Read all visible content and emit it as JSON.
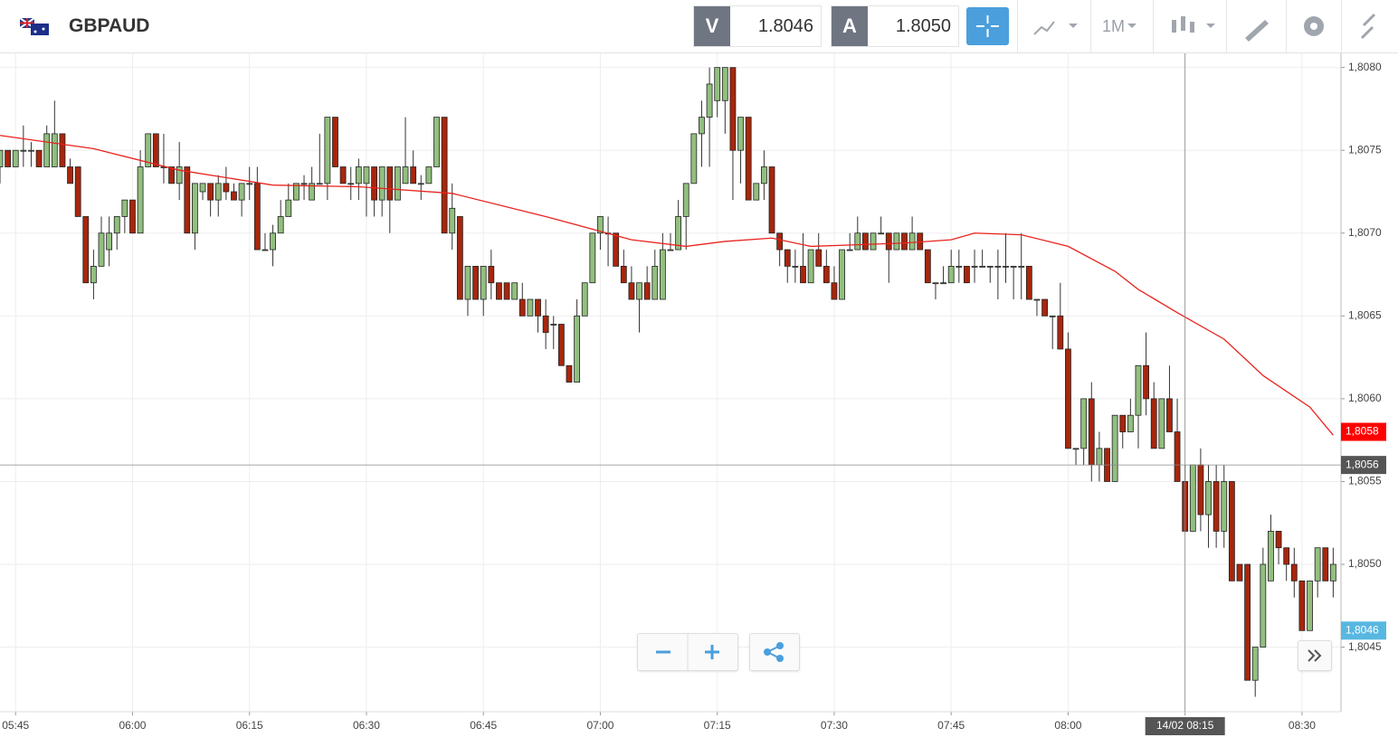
{
  "header": {
    "symbol": "GBPAUD",
    "bid_label": "V",
    "bid": "1.8046",
    "ask_label": "A",
    "ask": "1.8050",
    "timeframe": "1M"
  },
  "chart_data": {
    "type": "candlestick",
    "up_color": "#92bf7f",
    "down_color": "#a8260c",
    "xlim": [
      "05:43",
      "08:35"
    ],
    "xticks": [
      "05:45",
      "06:00",
      "06:15",
      "06:30",
      "06:45",
      "07:00",
      "07:15",
      "07:30",
      "07:45",
      "08:00",
      "08:15",
      "08:30"
    ],
    "ylim": [
      1.80411,
      1.80808
    ],
    "yticks": [
      {
        "value": 1.8045,
        "label": "1,8045"
      },
      {
        "value": 1.805,
        "label": "1,8050"
      },
      {
        "value": 1.8055,
        "label": "1,8055"
      },
      {
        "value": 1.806,
        "label": "1,8060"
      },
      {
        "value": 1.8065,
        "label": "1,8065"
      },
      {
        "value": 1.807,
        "label": "1,8070"
      },
      {
        "value": 1.8075,
        "label": "1,8075"
      },
      {
        "value": 1.808,
        "label": "1,8080"
      }
    ],
    "grid": true,
    "x": [
      "05:43",
      "05:44",
      "05:45",
      "05:46",
      "05:47",
      "05:48",
      "05:49",
      "05:50",
      "05:51",
      "05:52",
      "05:53",
      "05:54",
      "05:55",
      "05:56",
      "05:57",
      "05:58",
      "05:59",
      "06:00",
      "06:01",
      "06:02",
      "06:03",
      "06:04",
      "06:05",
      "06:06",
      "06:07",
      "06:08",
      "06:09",
      "06:10",
      "06:11",
      "06:12",
      "06:13",
      "06:14",
      "06:15",
      "06:16",
      "06:17",
      "06:18",
      "06:19",
      "06:20",
      "06:21",
      "06:22",
      "06:23",
      "06:24",
      "06:25",
      "06:26",
      "06:27",
      "06:28",
      "06:29",
      "06:30",
      "06:31",
      "06:32",
      "06:33",
      "06:34",
      "06:35",
      "06:36",
      "06:37",
      "06:38",
      "06:39",
      "06:40",
      "06:41",
      "06:42",
      "06:43",
      "06:44",
      "06:45",
      "06:46",
      "06:47",
      "06:48",
      "06:49",
      "06:50",
      "06:51",
      "06:52",
      "06:53",
      "06:54",
      "06:55",
      "06:56",
      "06:57",
      "06:58",
      "06:59",
      "07:00",
      "07:01",
      "07:02",
      "07:03",
      "07:04",
      "07:05",
      "07:06",
      "07:07",
      "07:08",
      "07:09",
      "07:10",
      "07:11",
      "07:12",
      "07:13",
      "07:14",
      "07:15",
      "07:16",
      "07:17",
      "07:18",
      "07:19",
      "07:20",
      "07:21",
      "07:22",
      "07:23",
      "07:24",
      "07:25",
      "07:26",
      "07:27",
      "07:28",
      "07:29",
      "07:30",
      "07:31",
      "07:32",
      "07:33",
      "07:34",
      "07:35",
      "07:36",
      "07:37",
      "07:38",
      "07:39",
      "07:40",
      "07:41",
      "07:42",
      "07:43",
      "07:44",
      "07:45",
      "07:46",
      "07:47",
      "07:48",
      "07:49",
      "07:50",
      "07:51",
      "07:52",
      "07:53",
      "07:54",
      "07:55",
      "07:56",
      "07:57",
      "07:58",
      "07:59",
      "08:00",
      "08:01",
      "08:02",
      "08:03",
      "08:04",
      "08:05",
      "08:06",
      "08:07",
      "08:08",
      "08:09",
      "08:10",
      "08:11",
      "08:12",
      "08:13",
      "08:14",
      "08:15",
      "08:16",
      "08:17",
      "08:18",
      "08:19",
      "08:20",
      "08:21",
      "08:22",
      "08:23",
      "08:24",
      "08:25",
      "08:26",
      "08:27",
      "08:28",
      "08:29",
      "08:30",
      "08:31",
      "08:32",
      "08:33",
      "08:34"
    ],
    "ohlc": [
      [
        1.8074,
        1.8075,
        1.8073,
        1.8075
      ],
      [
        1.8075,
        1.8075,
        1.8074,
        1.8074
      ],
      [
        1.8074,
        1.8075,
        1.8074,
        1.8075
      ],
      [
        1.8075,
        1.80765,
        1.8074,
        1.8075
      ],
      [
        1.8075,
        1.80755,
        1.8074,
        1.8075
      ],
      [
        1.8075,
        1.8075,
        1.8074,
        1.8074
      ],
      [
        1.8074,
        1.80765,
        1.8074,
        1.8076
      ],
      [
        1.8074,
        1.8078,
        1.8074,
        1.8076
      ],
      [
        1.8076,
        1.8076,
        1.8074,
        1.8074
      ],
      [
        1.8074,
        1.80745,
        1.8073,
        1.8073
      ],
      [
        1.8074,
        1.8074,
        1.8071,
        1.8071
      ],
      [
        1.8071,
        1.8071,
        1.8067,
        1.8067
      ],
      [
        1.8067,
        1.8069,
        1.8066,
        1.8068
      ],
      [
        1.8068,
        1.8071,
        1.8068,
        1.807
      ],
      [
        1.8069,
        1.8071,
        1.8068,
        1.807
      ],
      [
        1.807,
        1.8071,
        1.8069,
        1.8071
      ],
      [
        1.8071,
        1.8072,
        1.807,
        1.8072
      ],
      [
        1.8072,
        1.8072,
        1.807,
        1.807
      ],
      [
        1.807,
        1.8075,
        1.807,
        1.8074
      ],
      [
        1.8074,
        1.8076,
        1.8074,
        1.8076
      ],
      [
        1.8076,
        1.8076,
        1.8074,
        1.8074
      ],
      [
        1.8074,
        1.8076,
        1.8073,
        1.8074
      ],
      [
        1.8074,
        1.8074,
        1.8073,
        1.8073
      ],
      [
        1.8073,
        1.80755,
        1.8072,
        1.8074
      ],
      [
        1.8074,
        1.8074,
        1.807,
        1.807
      ],
      [
        1.807,
        1.8073,
        1.8069,
        1.8073
      ],
      [
        1.80725,
        1.8073,
        1.8072,
        1.8073
      ],
      [
        1.8073,
        1.8073,
        1.8071,
        1.8072
      ],
      [
        1.8072,
        1.80735,
        1.8071,
        1.8073
      ],
      [
        1.8073,
        1.8074,
        1.8072,
        1.80725
      ],
      [
        1.80725,
        1.8073,
        1.8072,
        1.8072
      ],
      [
        1.8072,
        1.8073,
        1.8071,
        1.8073
      ],
      [
        1.8073,
        1.8074,
        1.8072,
        1.8073
      ],
      [
        1.8073,
        1.8074,
        1.8069,
        1.8069
      ],
      [
        1.8069,
        1.807,
        1.8069,
        1.8069
      ],
      [
        1.8069,
        1.80705,
        1.8068,
        1.807
      ],
      [
        1.807,
        1.8072,
        1.807,
        1.8071
      ],
      [
        1.8071,
        1.8073,
        1.8071,
        1.8072
      ],
      [
        1.8072,
        1.8073,
        1.8072,
        1.8073
      ],
      [
        1.8073,
        1.80735,
        1.8072,
        1.8073
      ],
      [
        1.8072,
        1.8074,
        1.8072,
        1.8073
      ],
      [
        1.8073,
        1.8076,
        1.8073,
        1.8073
      ],
      [
        1.8073,
        1.8077,
        1.8072,
        1.8077
      ],
      [
        1.8077,
        1.8077,
        1.8074,
        1.8074
      ],
      [
        1.8074,
        1.8074,
        1.8073,
        1.8073
      ],
      [
        1.8073,
        1.8074,
        1.8072,
        1.8073
      ],
      [
        1.8073,
        1.80745,
        1.8072,
        1.8074
      ],
      [
        1.8073,
        1.8074,
        1.8071,
        1.8074
      ],
      [
        1.8074,
        1.8074,
        1.8071,
        1.8072
      ],
      [
        1.8072,
        1.8074,
        1.8071,
        1.8074
      ],
      [
        1.8074,
        1.8074,
        1.807,
        1.8072
      ],
      [
        1.8072,
        1.8074,
        1.8072,
        1.8074
      ],
      [
        1.8073,
        1.8077,
        1.8073,
        1.8074
      ],
      [
        1.8074,
        1.8075,
        1.8073,
        1.8073
      ],
      [
        1.8073,
        1.80735,
        1.8072,
        1.8073
      ],
      [
        1.8073,
        1.8074,
        1.8073,
        1.8074
      ],
      [
        1.8074,
        1.8077,
        1.8074,
        1.8077
      ],
      [
        1.8077,
        1.8077,
        1.807,
        1.807
      ],
      [
        1.807,
        1.8073,
        1.8069,
        1.80715
      ],
      [
        1.8071,
        1.8071,
        1.8066,
        1.8066
      ],
      [
        1.8066,
        1.8068,
        1.8065,
        1.8068
      ],
      [
        1.8068,
        1.8068,
        1.8066,
        1.8066
      ],
      [
        1.8066,
        1.8068,
        1.8065,
        1.8068
      ],
      [
        1.8068,
        1.8069,
        1.8066,
        1.8067
      ],
      [
        1.8067,
        1.8067,
        1.8066,
        1.8066
      ],
      [
        1.8067,
        1.8067,
        1.8066,
        1.8066
      ],
      [
        1.8066,
        1.8067,
        1.8066,
        1.8067
      ],
      [
        1.8066,
        1.8067,
        1.8065,
        1.8065
      ],
      [
        1.8065,
        1.8066,
        1.8065,
        1.8066
      ],
      [
        1.8066,
        1.8066,
        1.8064,
        1.8065
      ],
      [
        1.8065,
        1.8066,
        1.8063,
        1.8064
      ],
      [
        1.80645,
        1.8065,
        1.8063,
        1.80645
      ],
      [
        1.80645,
        1.80645,
        1.8062,
        1.8062
      ],
      [
        1.8062,
        1.8062,
        1.8061,
        1.8061
      ],
      [
        1.8061,
        1.8066,
        1.8061,
        1.8065
      ],
      [
        1.8065,
        1.8067,
        1.8065,
        1.8067
      ],
      [
        1.8067,
        1.807,
        1.8067,
        1.807
      ],
      [
        1.807,
        1.8071,
        1.8069,
        1.8071
      ],
      [
        1.807,
        1.8071,
        1.8068,
        1.807
      ],
      [
        1.807,
        1.807,
        1.8068,
        1.8068
      ],
      [
        1.8068,
        1.8069,
        1.8067,
        1.8067
      ],
      [
        1.8067,
        1.8068,
        1.8066,
        1.8066
      ],
      [
        1.8066,
        1.8067,
        1.8064,
        1.8067
      ],
      [
        1.8067,
        1.8068,
        1.8066,
        1.8066
      ],
      [
        1.8066,
        1.8069,
        1.8066,
        1.8068
      ],
      [
        1.8066,
        1.807,
        1.8066,
        1.8069
      ],
      [
        1.8069,
        1.807,
        1.8069,
        1.8069
      ],
      [
        1.8069,
        1.8072,
        1.8069,
        1.8071
      ],
      [
        1.8071,
        1.8073,
        1.8069,
        1.8073
      ],
      [
        1.8073,
        1.8076,
        1.8073,
        1.8076
      ],
      [
        1.8076,
        1.8078,
        1.8074,
        1.8077
      ],
      [
        1.8077,
        1.808,
        1.8074,
        1.8079
      ],
      [
        1.8078,
        1.808,
        1.8077,
        1.808
      ],
      [
        1.8078,
        1.808,
        1.8076,
        1.808
      ],
      [
        1.808,
        1.808,
        1.8072,
        1.8075
      ],
      [
        1.8075,
        1.8077,
        1.8073,
        1.8077
      ],
      [
        1.8077,
        1.8077,
        1.8072,
        1.8072
      ],
      [
        1.8072,
        1.8073,
        1.8072,
        1.8073
      ],
      [
        1.8073,
        1.8075,
        1.8072,
        1.8074
      ],
      [
        1.8074,
        1.8074,
        1.807,
        1.807
      ],
      [
        1.807,
        1.807,
        1.8068,
        1.8069
      ],
      [
        1.8069,
        1.8069,
        1.8067,
        1.8068
      ],
      [
        1.8068,
        1.8069,
        1.8067,
        1.8068
      ],
      [
        1.8068,
        1.807,
        1.8067,
        1.8067
      ],
      [
        1.8067,
        1.8069,
        1.8067,
        1.8069
      ],
      [
        1.8069,
        1.807,
        1.8068,
        1.8068
      ],
      [
        1.8068,
        1.8069,
        1.8067,
        1.8067
      ],
      [
        1.8067,
        1.8068,
        1.8066,
        1.8066
      ],
      [
        1.8066,
        1.8069,
        1.8066,
        1.8069
      ],
      [
        1.8069,
        1.807,
        1.8069,
        1.8069
      ],
      [
        1.8069,
        1.8071,
        1.8069,
        1.807
      ],
      [
        1.807,
        1.807,
        1.8069,
        1.8069
      ],
      [
        1.8069,
        1.807,
        1.8069,
        1.807
      ],
      [
        1.807,
        1.8071,
        1.807,
        1.807
      ],
      [
        1.807,
        1.807,
        1.8067,
        1.8069
      ],
      [
        1.8069,
        1.807,
        1.8069,
        1.807
      ],
      [
        1.807,
        1.807,
        1.8069,
        1.8069
      ],
      [
        1.8069,
        1.8071,
        1.8069,
        1.807
      ],
      [
        1.807,
        1.807,
        1.8069,
        1.8069
      ],
      [
        1.8069,
        1.8069,
        1.8067,
        1.8067
      ],
      [
        1.8067,
        1.8067,
        1.8066,
        1.8067
      ],
      [
        1.8067,
        1.8068,
        1.8067,
        1.8067
      ],
      [
        1.8067,
        1.8069,
        1.8067,
        1.8068
      ],
      [
        1.8068,
        1.8069,
        1.8067,
        1.8068
      ],
      [
        1.8068,
        1.8068,
        1.8067,
        1.8067
      ],
      [
        1.8068,
        1.8069,
        1.8067,
        1.8068
      ],
      [
        1.8068,
        1.8069,
        1.8068,
        1.8068
      ],
      [
        1.8068,
        1.8068,
        1.8067,
        1.8068
      ],
      [
        1.8068,
        1.8069,
        1.8066,
        1.8068
      ],
      [
        1.8068,
        1.807,
        1.8067,
        1.8068
      ],
      [
        1.8068,
        1.8068,
        1.8066,
        1.8068
      ],
      [
        1.8068,
        1.807,
        1.8066,
        1.8068
      ],
      [
        1.8068,
        1.8068,
        1.8066,
        1.8066
      ],
      [
        1.8066,
        1.8066,
        1.8065,
        1.8066
      ],
      [
        1.8066,
        1.8066,
        1.8065,
        1.8065
      ],
      [
        1.8065,
        1.8065,
        1.8063,
        1.8065
      ],
      [
        1.8065,
        1.8067,
        1.8063,
        1.8063
      ],
      [
        1.8063,
        1.8064,
        1.8057,
        1.8057
      ],
      [
        1.8057,
        1.8057,
        1.8056,
        1.8057
      ],
      [
        1.8057,
        1.806,
        1.8056,
        1.806
      ],
      [
        1.806,
        1.8061,
        1.8055,
        1.8056
      ],
      [
        1.8056,
        1.8058,
        1.8055,
        1.8057
      ],
      [
        1.8057,
        1.8057,
        1.8055,
        1.8055
      ],
      [
        1.8055,
        1.8059,
        1.8055,
        1.8059
      ],
      [
        1.8059,
        1.8059,
        1.8057,
        1.8058
      ],
      [
        1.8058,
        1.806,
        1.8058,
        1.8059
      ],
      [
        1.8059,
        1.8062,
        1.8057,
        1.8062
      ],
      [
        1.8062,
        1.8064,
        1.8059,
        1.806
      ],
      [
        1.806,
        1.8061,
        1.8057,
        1.8057
      ],
      [
        1.8057,
        1.806,
        1.8057,
        1.806
      ],
      [
        1.806,
        1.8062,
        1.8058,
        1.8058
      ],
      [
        1.8058,
        1.806,
        1.8055,
        1.8055
      ],
      [
        1.8055,
        1.8056,
        1.8052,
        1.8052
      ],
      [
        1.8052,
        1.8056,
        1.8052,
        1.8056
      ],
      [
        1.8056,
        1.8057,
        1.8052,
        1.8053
      ],
      [
        1.8053,
        1.8056,
        1.8051,
        1.8055
      ],
      [
        1.8055,
        1.8056,
        1.8051,
        1.8052
      ],
      [
        1.8052,
        1.8056,
        1.8051,
        1.8055
      ],
      [
        1.8055,
        1.8055,
        1.8049,
        1.8049
      ],
      [
        1.805,
        1.805,
        1.8049,
        1.8049
      ],
      [
        1.805,
        1.805,
        1.8043,
        1.8043
      ],
      [
        1.8043,
        1.8045,
        1.8042,
        1.8045
      ],
      [
        1.8045,
        1.8051,
        1.8045,
        1.805
      ],
      [
        1.8049,
        1.8053,
        1.8049,
        1.8052
      ],
      [
        1.8052,
        1.8052,
        1.805,
        1.8051
      ],
      [
        1.8051,
        1.8051,
        1.8049,
        1.805
      ],
      [
        1.805,
        1.8051,
        1.8048,
        1.8049
      ],
      [
        1.8049,
        1.8049,
        1.8046,
        1.8046
      ],
      [
        1.8046,
        1.8049,
        1.8046,
        1.8049
      ],
      [
        1.8049,
        1.8051,
        1.8048,
        1.8051
      ],
      [
        1.8051,
        1.8051,
        1.8049,
        1.8049
      ],
      [
        1.8049,
        1.8051,
        1.8048,
        1.805
      ]
    ],
    "ma": {
      "color": "#e8231e",
      "x": [
        "05:43",
        "05:55",
        "06:06",
        "06:18",
        "06:29",
        "06:41",
        "06:53",
        "07:04",
        "07:11",
        "07:16",
        "07:22",
        "07:27",
        "07:33",
        "07:39",
        "07:45",
        "07:48",
        "07:54",
        "08:00",
        "08:06",
        "08:09",
        "08:14",
        "08:20",
        "08:25",
        "08:31",
        "08:34"
      ],
      "values": [
        1.80759,
        1.80751,
        1.80738,
        1.80729,
        1.80728,
        1.80724,
        1.8071,
        1.80696,
        1.80692,
        1.80695,
        1.80697,
        1.80692,
        1.80693,
        1.80694,
        1.80696,
        1.807,
        1.80699,
        1.80692,
        1.80677,
        1.80666,
        1.80652,
        1.80636,
        1.80614,
        1.80595,
        1.80578
      ]
    },
    "price_tags": [
      {
        "value": 1.8058,
        "label": "1,8058",
        "color": "#ff0000"
      },
      {
        "value": 1.8046,
        "label": "1,8046",
        "color": "#58b7e0"
      }
    ],
    "crosshair": {
      "x": "08:15",
      "x_label": "14/02 08:15",
      "y": 1.8056,
      "y_label": "1,8056"
    }
  }
}
